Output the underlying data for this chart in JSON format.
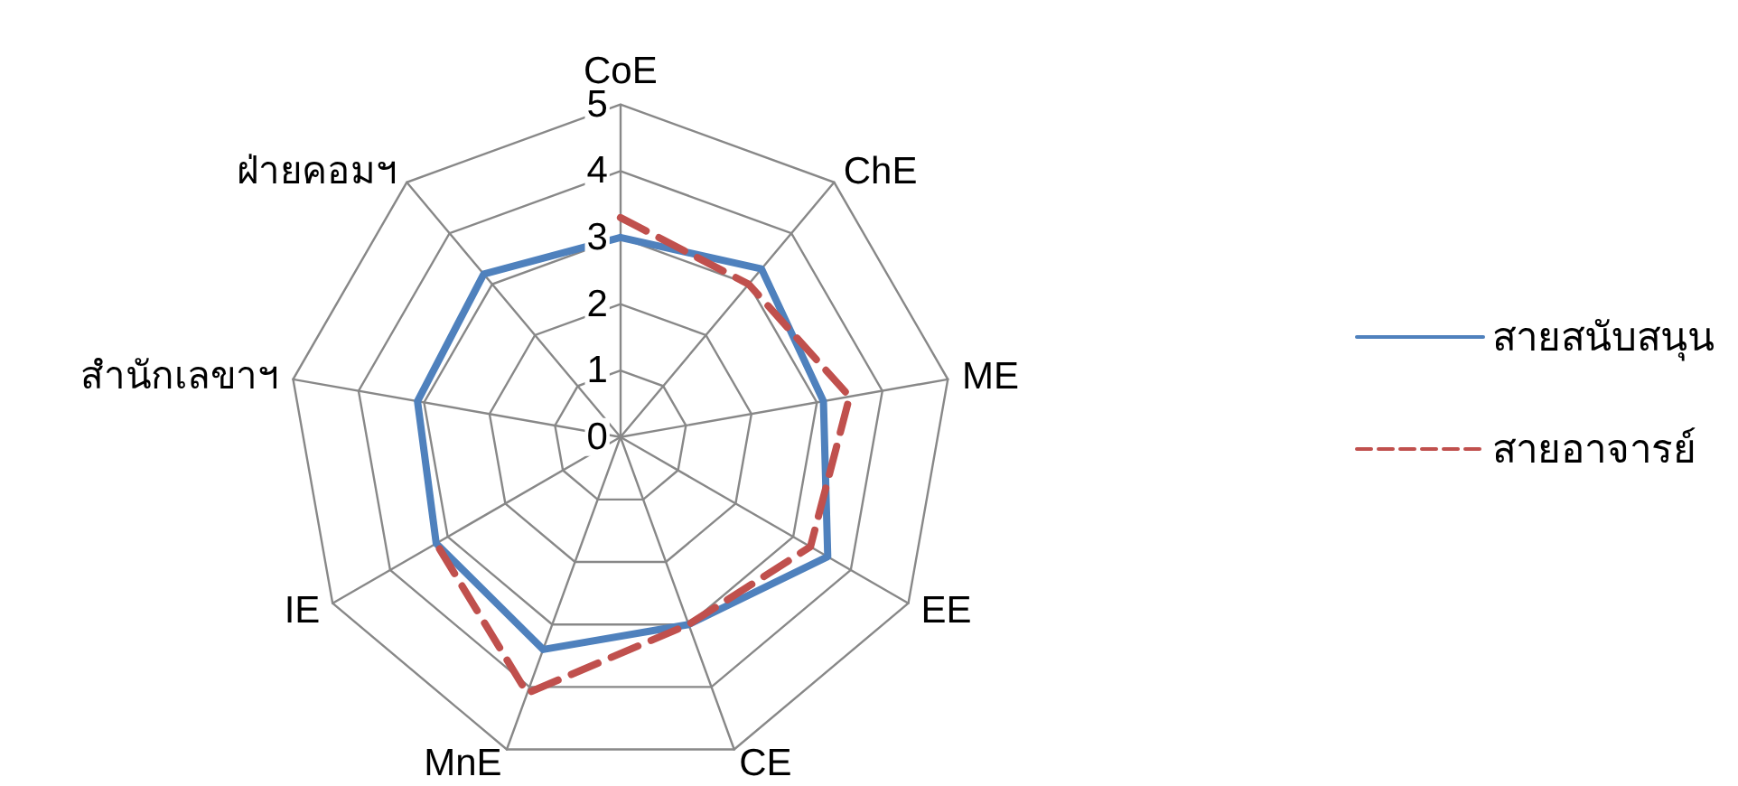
{
  "chart_data": {
    "type": "radar",
    "categories": [
      "CoE",
      "ChE",
      "ME",
      "EE",
      "CE",
      "MnE",
      "IE",
      "สำนักเลขาฯ",
      "ฝ่ายคอมฯ"
    ],
    "series": [
      {
        "name": "สายสนับสนุน",
        "color": "#4f81bd",
        "line_style": "solid",
        "values": [
          3.0,
          3.3,
          3.1,
          3.6,
          3.0,
          3.4,
          3.2,
          3.1,
          3.2
        ]
      },
      {
        "name": "สายอาจารย์",
        "color": "#c0504d",
        "line_style": "dashed",
        "values": [
          3.3,
          3.0,
          3.5,
          3.3,
          3.0,
          4.1,
          3.2,
          null,
          null
        ]
      }
    ],
    "ylim": [
      0,
      5
    ],
    "yticks": [
      0,
      1,
      2,
      3,
      4,
      5
    ],
    "grid": true,
    "legend": "right",
    "marker": "none"
  }
}
